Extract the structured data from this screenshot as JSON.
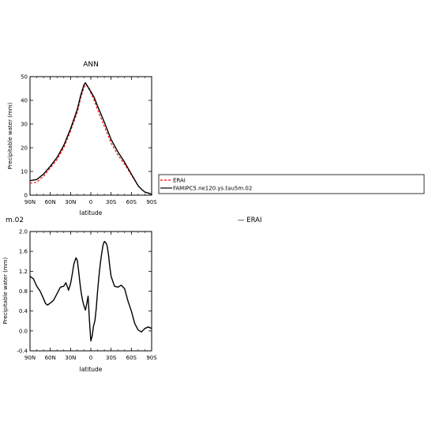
{
  "chart_data": [
    {
      "type": "line",
      "title": "ANN",
      "xlabel": "latitude",
      "ylabel": "Precipitable water (mm)",
      "xlim": [
        90,
        -90
      ],
      "ylim": [
        0,
        50
      ],
      "x_ticks": [
        90,
        60,
        30,
        0,
        -30,
        -60,
        -90
      ],
      "x_tick_labels": [
        "90N",
        "60N",
        "30N",
        "0",
        "30S",
        "60S",
        "90S"
      ],
      "y_ticks": [
        0,
        10,
        20,
        30,
        40,
        50
      ],
      "y_tick_labels": [
        "0",
        "10",
        "20",
        "30",
        "40",
        "50"
      ],
      "x": [
        90,
        80,
        70,
        60,
        50,
        40,
        30,
        20,
        15,
        10,
        8,
        5,
        2,
        0,
        -5,
        -10,
        -20,
        -30,
        -40,
        -50,
        -60,
        -70,
        -75,
        -80,
        -85,
        -90
      ],
      "series": [
        {
          "name": "ERAI",
          "color": "#ff0000",
          "dash": true,
          "values": [
            5.0,
            5.5,
            8.0,
            11.5,
            15.0,
            20.0,
            27.0,
            35.0,
            41.0,
            45.5,
            46.5,
            46.0,
            45.0,
            43.0,
            40.0,
            36.0,
            29.0,
            22.0,
            17.0,
            13.0,
            8.5,
            4.0,
            2.5,
            1.2,
            0.8,
            0.3
          ]
        },
        {
          "name": "FAMIPC5.ne120.ys.tau5m.02",
          "color": "#000000",
          "dash": false,
          "values": [
            6.1,
            6.6,
            8.9,
            12.2,
            15.9,
            21.0,
            28.0,
            36.2,
            42.1,
            46.7,
            47.4,
            46.0,
            44.5,
            43.7,
            41.2,
            37.6,
            30.8,
            23.5,
            18.3,
            13.9,
            8.9,
            4.0,
            2.5,
            1.3,
            0.9,
            0.4
          ]
        }
      ],
      "legend": {
        "position": "right",
        "entries": [
          "ERAI",
          "FAMIPC5.ne120.ys.tau5m.02"
        ]
      }
    },
    {
      "type": "line",
      "title": "m.02",
      "annotation": "— ERAI",
      "xlabel": "latitude",
      "ylabel": "Precipitable water (mm)",
      "xlim": [
        90,
        -90
      ],
      "ylim": [
        -0.4,
        2.0
      ],
      "x_ticks": [
        90,
        60,
        30,
        0,
        -30,
        -60,
        -90
      ],
      "x_tick_labels": [
        "90N",
        "60N",
        "30N",
        "0",
        "30S",
        "60S",
        "90S"
      ],
      "y_ticks": [
        -0.4,
        0.0,
        0.4,
        0.8,
        1.2,
        1.6,
        2.0
      ],
      "y_tick_labels": [
        "-0.4",
        "0.0",
        "0.4",
        "0.8",
        "1.2",
        "1.6",
        "2.0"
      ],
      "x": [
        90,
        85,
        80,
        75,
        70,
        67,
        64,
        60,
        55,
        50,
        45,
        40,
        37,
        35,
        33,
        30,
        28,
        25,
        22,
        20,
        18,
        16,
        14,
        12,
        10,
        8,
        6,
        4,
        2,
        0,
        -2,
        -4,
        -6,
        -8,
        -10,
        -12,
        -14,
        -16,
        -18,
        -20,
        -22,
        -24,
        -26,
        -28,
        -30,
        -35,
        -40,
        -45,
        -50,
        -55,
        -60,
        -65,
        -70,
        -75,
        -80,
        -85,
        -90
      ],
      "series": [
        {
          "name": "",
          "color": "#000000",
          "values": [
            1.1,
            1.05,
            0.9,
            0.8,
            0.65,
            0.55,
            0.52,
            0.56,
            0.62,
            0.75,
            0.88,
            0.9,
            0.97,
            0.9,
            0.82,
            0.95,
            1.1,
            1.35,
            1.47,
            1.42,
            1.2,
            0.95,
            0.75,
            0.6,
            0.5,
            0.42,
            0.55,
            0.7,
            0.2,
            -0.2,
            -0.1,
            0.1,
            0.2,
            0.45,
            0.8,
            1.1,
            1.35,
            1.55,
            1.72,
            1.8,
            1.78,
            1.72,
            1.55,
            1.3,
            1.1,
            0.9,
            0.88,
            0.92,
            0.85,
            0.6,
            0.4,
            0.15,
            0.02,
            -0.02,
            0.05,
            0.08,
            0.05
          ]
        }
      ]
    }
  ]
}
